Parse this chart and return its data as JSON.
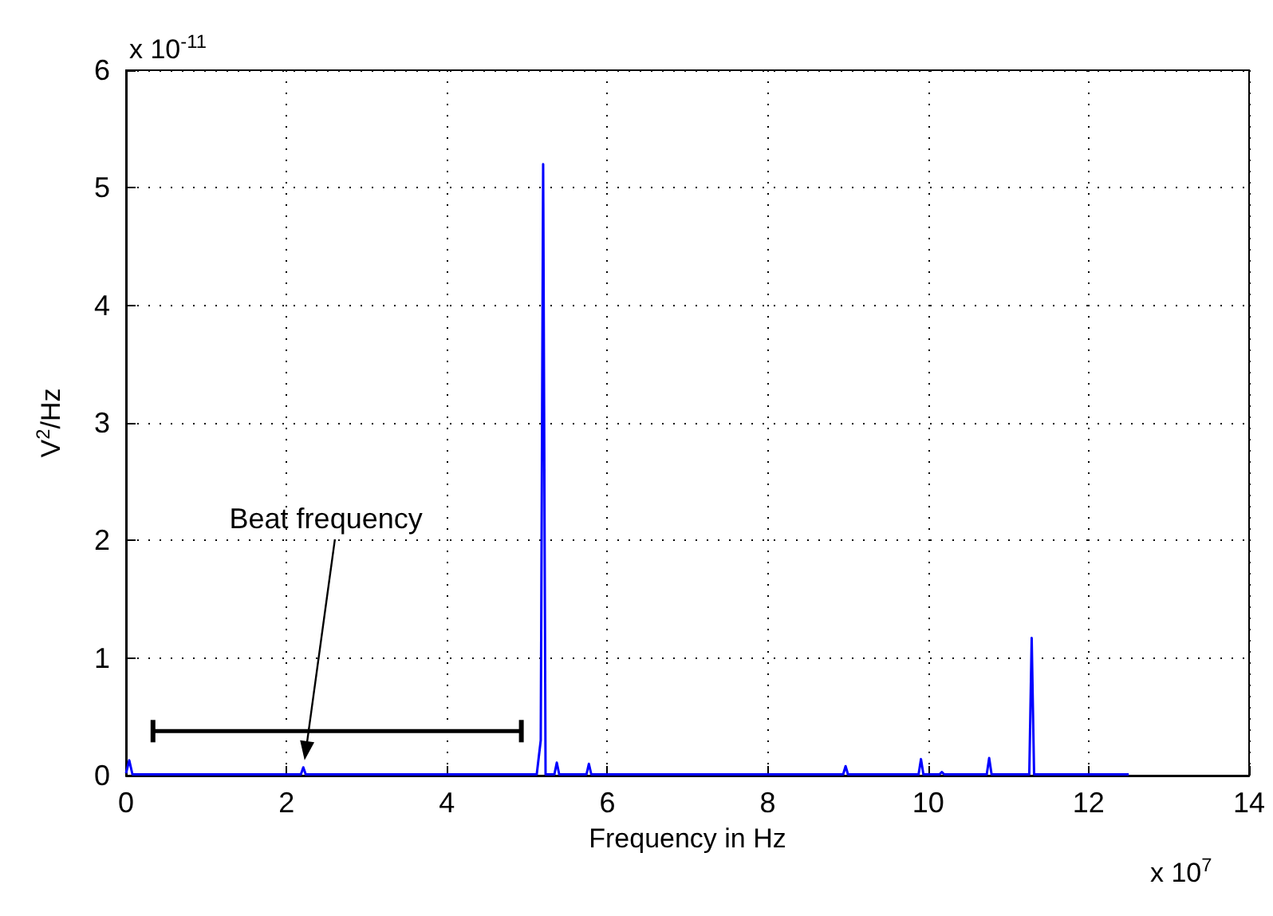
{
  "chart_data": {
    "type": "line",
    "xlabel": "Frequency in Hz",
    "ylabel": "V$^{2}$/Hz",
    "x": [
      0,
      0.04,
      0.08,
      2.18,
      2.21,
      2.24,
      5.12,
      5.17,
      5.2,
      5.23,
      5.34,
      5.37,
      5.4,
      5.74,
      5.77,
      5.8,
      8.94,
      8.97,
      9.0,
      9.88,
      9.91,
      9.94,
      10.14,
      10.17,
      10.2,
      10.73,
      10.76,
      10.79,
      11.26,
      11.29,
      11.32,
      12.5
    ],
    "series": [
      {
        "color": "#0000ff",
        "values": [
          0.02,
          0.13,
          0.01,
          0.01,
          0.07,
          0.01,
          0.01,
          0.3,
          5.2,
          0.01,
          0.01,
          0.11,
          0.01,
          0.01,
          0.1,
          0.01,
          0.01,
          0.08,
          0.01,
          0.01,
          0.14,
          0.01,
          0.01,
          0.03,
          0.01,
          0.01,
          0.15,
          0.01,
          0.01,
          1.17,
          0.01,
          0.01
        ]
      }
    ],
    "xlim": [
      0,
      14
    ],
    "xticks": [
      0,
      2,
      4,
      6,
      8,
      10,
      12,
      14
    ],
    "ylim": [
      0,
      6
    ],
    "yticks": [
      0,
      1,
      2,
      3,
      4,
      5,
      6
    ],
    "grid": true,
    "annotations": [
      "Beat frequency",
      "x 10$^{-11}$",
      "x 10$^{7}$"
    ]
  }
}
